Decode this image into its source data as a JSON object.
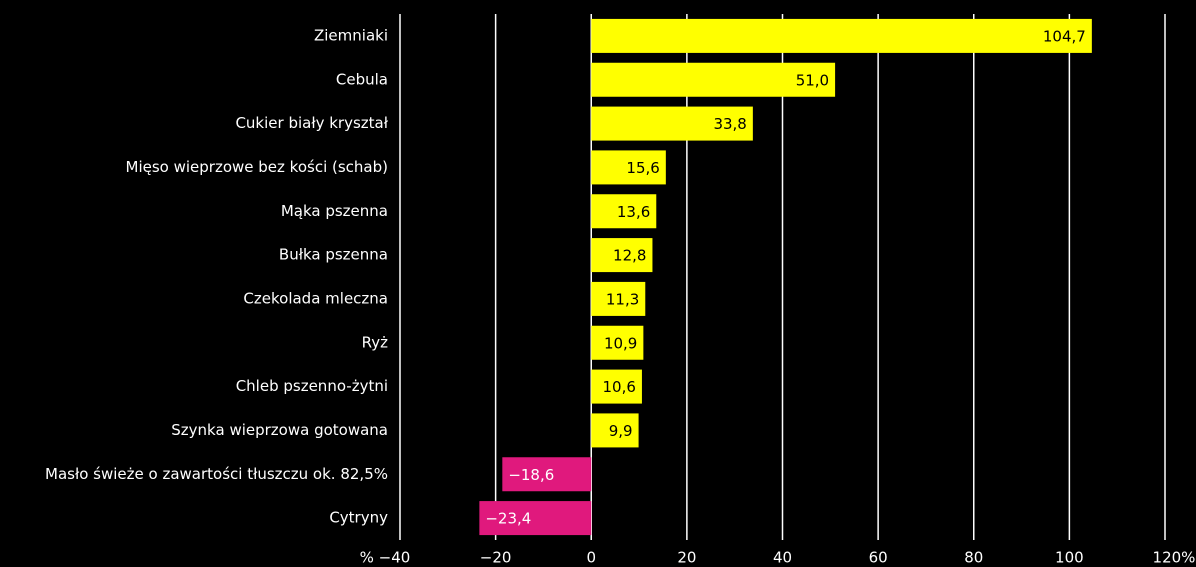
{
  "chart_data": {
    "type": "hbar",
    "categories": [
      "Ziemniaki",
      "Cebula",
      "Cukier biały kryształ",
      "Mięso wieprzowe bez kości (schab)",
      "Mąka pszenna",
      "Bułka pszenna",
      "Czekolada mleczna",
      "Ryż",
      "Chleb pszenno-żytni",
      "Szynka wieprzowa gotowana",
      "Masło świeże o zawartości tłuszczu ok. 82,5%",
      "Cytryny"
    ],
    "values": [
      104.7,
      51.0,
      33.8,
      15.6,
      13.6,
      12.8,
      11.3,
      10.9,
      10.6,
      9.9,
      -18.6,
      -23.4
    ],
    "value_labels": [
      "104,7",
      "51,0",
      "33,8",
      "15,6",
      "13,6",
      "12,8",
      "11,3",
      "10,9",
      "10,6",
      "9,9",
      "−18,6",
      "−23,4"
    ],
    "color": "#ffff00",
    "negative_color": "#e0197d",
    "xlim": [
      -40,
      120
    ],
    "xticks": [
      {
        "value": -40,
        "label": "% −40"
      },
      {
        "value": -20,
        "label": "−20"
      },
      0,
      20,
      40,
      60,
      80,
      100,
      {
        "value": 120,
        "label": "120%"
      }
    ],
    "grid": true
  }
}
